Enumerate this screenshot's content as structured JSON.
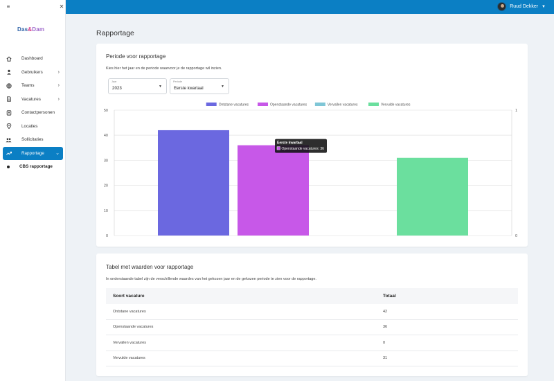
{
  "user": {
    "name": "Ruud Dekker"
  },
  "brand": {
    "part1": "Das",
    "amp": "&",
    "part2": "Dam"
  },
  "nav": [
    {
      "label": "Dashboard",
      "icon": "home-icon",
      "arrow": false
    },
    {
      "label": "Gebruikers",
      "icon": "user-icon",
      "arrow": true
    },
    {
      "label": "Teams",
      "icon": "globe-icon",
      "arrow": true
    },
    {
      "label": "Vacatures",
      "icon": "document-icon",
      "arrow": true
    },
    {
      "label": "Contactpersonen",
      "icon": "contact-icon",
      "arrow": false
    },
    {
      "label": "Locaties",
      "icon": "location-pin-icon",
      "arrow": false
    },
    {
      "label": "Sollicitaties",
      "icon": "people-icon",
      "arrow": false
    },
    {
      "label": "Rapportage",
      "icon": "trending-icon",
      "arrow": true,
      "active": true
    }
  ],
  "nav_sub": {
    "label": "CBS rapportage"
  },
  "page_title": "Rapportage",
  "period_card": {
    "title": "Periode voor rapportage",
    "description": "Kies hier het jaar en de periode waarvoor je de rapportage wil inzien.",
    "year_label": "Jaar",
    "year_value": "2023",
    "period_label": "Periode",
    "period_value": "Eerste kwartaal"
  },
  "chart_data": {
    "type": "bar",
    "categories": [
      "Ontstane vacatures",
      "Openstaande vacatures",
      "Vervallen vacatures",
      "Vervulde vacatures"
    ],
    "values": [
      42,
      36,
      0,
      31
    ],
    "colors": [
      "#6b68e0",
      "#c758e8",
      "#7fc6d6",
      "#6bdf9e"
    ],
    "ylim": [
      0,
      50
    ],
    "yticks": [
      "0",
      "10",
      "20",
      "30",
      "40",
      "50"
    ],
    "right_axis_ticks": [
      "0",
      "1"
    ],
    "legend_position": "top-center",
    "grid": true,
    "tooltip": {
      "title": "Eerste kwartaal",
      "text": "Openstaande vacatures: 36",
      "target_index": 1
    }
  },
  "table_card": {
    "title": "Tabel met waarden voor rapportage",
    "description": "In onderstaande tabel zijn de verschillende waardes van het gekozen jaar en de gekozen periode te zien voor de rapportage.",
    "headers": [
      "Soort vacature",
      "Totaal"
    ],
    "rows": [
      [
        "Ontstane vacatures",
        "42"
      ],
      [
        "Openstaande vacatures",
        "36"
      ],
      [
        "Vervallen vacatures",
        "0"
      ],
      [
        "Vervulde vacatures",
        "31"
      ]
    ]
  }
}
